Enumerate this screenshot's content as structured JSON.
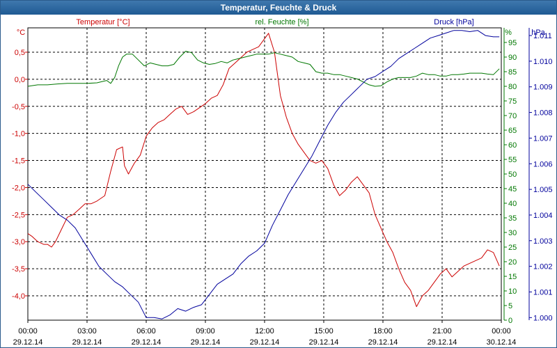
{
  "window": {
    "title": "Temperatur, Feuchte & Druck"
  },
  "chart_data": {
    "type": "line",
    "title": "Temperatur, Feuchte & Druck",
    "x_ticks": [
      {
        "time": "00:00",
        "date": "29.12.14"
      },
      {
        "time": "03:00",
        "date": "29.12.14"
      },
      {
        "time": "06:00",
        "date": "29.12.14"
      },
      {
        "time": "09:00",
        "date": "29.12.14"
      },
      {
        "time": "12:00",
        "date": "29.12.14"
      },
      {
        "time": "15:00",
        "date": "29.12.14"
      },
      {
        "time": "18:00",
        "date": "29.12.14"
      },
      {
        "time": "21:00",
        "date": "29.12.14"
      },
      {
        "time": "00:00",
        "date": "30.12.14"
      }
    ],
    "xlim": [
      0,
      24
    ],
    "axes": {
      "temperature": {
        "title": "Temperatur [°C]",
        "unit": "°C",
        "color": "#cc0000",
        "ylim": [
          -4.45,
          0.95
        ],
        "ticks": [
          {
            "v": 0.5,
            "label": "0,5"
          },
          {
            "v": 0.0,
            "label": "0,0"
          },
          {
            "v": -0.5,
            "label": "-0,5"
          },
          {
            "v": -1.0,
            "label": "-1,0"
          },
          {
            "v": -1.5,
            "label": "-1,5"
          },
          {
            "v": -2.0,
            "label": "-2,0"
          },
          {
            "v": -2.5,
            "label": "-2,5"
          },
          {
            "v": -3.0,
            "label": "-3,0"
          },
          {
            "v": -3.5,
            "label": "-3,5"
          },
          {
            "v": -4.0,
            "label": "-4,0"
          }
        ]
      },
      "humidity": {
        "title": "rel. Feuchte [%]",
        "unit": "%",
        "color": "#007700",
        "ylim": [
          0,
          100
        ],
        "ticks": [
          {
            "v": 95,
            "label": "95"
          },
          {
            "v": 90,
            "label": "90"
          },
          {
            "v": 85,
            "label": "85"
          },
          {
            "v": 80,
            "label": "80"
          },
          {
            "v": 75,
            "label": "75"
          },
          {
            "v": 70,
            "label": "70"
          },
          {
            "v": 65,
            "label": "65"
          },
          {
            "v": 60,
            "label": "60"
          },
          {
            "v": 55,
            "label": "55"
          },
          {
            "v": 50,
            "label": "50"
          },
          {
            "v": 45,
            "label": "45"
          },
          {
            "v": 40,
            "label": "40"
          },
          {
            "v": 35,
            "label": "35"
          },
          {
            "v": 30,
            "label": "30"
          },
          {
            "v": 25,
            "label": "25"
          },
          {
            "v": 20,
            "label": "20"
          },
          {
            "v": 15,
            "label": "15"
          },
          {
            "v": 10,
            "label": "10"
          },
          {
            "v": 5,
            "label": "5"
          },
          {
            "v": 0,
            "label": "0"
          }
        ]
      },
      "pressure": {
        "title": "Druck [hPa]",
        "unit": "hPa",
        "color": "#00009c",
        "ylim": [
          999.9,
          1011.3
        ],
        "ticks": [
          {
            "v": 1011,
            "label": "1.011"
          },
          {
            "v": 1010,
            "label": "1.010"
          },
          {
            "v": 1009,
            "label": "1.009"
          },
          {
            "v": 1008,
            "label": "1.008"
          },
          {
            "v": 1007,
            "label": "1.007"
          },
          {
            "v": 1006,
            "label": "1.006"
          },
          {
            "v": 1005,
            "label": "1.005"
          },
          {
            "v": 1004,
            "label": "1.004"
          },
          {
            "v": 1003,
            "label": "1.003"
          },
          {
            "v": 1002,
            "label": "1.002"
          },
          {
            "v": 1001,
            "label": "1.001"
          },
          {
            "v": 1000,
            "label": "1.000"
          }
        ]
      }
    },
    "series": [
      {
        "name": "Temperatur",
        "axis": "temperature",
        "color": "#cc0000",
        "x": [
          0,
          0.2,
          0.5,
          0.8,
          1.0,
          1.2,
          1.4,
          1.6,
          1.8,
          2.0,
          2.3,
          2.6,
          2.9,
          3.2,
          3.5,
          3.9,
          4.2,
          4.5,
          4.8,
          4.9,
          5.1,
          5.4,
          5.7,
          6.0,
          6.3,
          6.6,
          6.9,
          7.2,
          7.5,
          7.8,
          8.1,
          8.4,
          8.6,
          8.8,
          9.0,
          9.3,
          9.6,
          9.9,
          10.2,
          10.5,
          10.8,
          11.1,
          11.4,
          11.7,
          12.0,
          12.2,
          12.5,
          12.8,
          13.1,
          13.4,
          13.7,
          14.0,
          14.3,
          14.6,
          14.9,
          15.2,
          15.5,
          15.8,
          16.1,
          16.4,
          16.7,
          17.0,
          17.3,
          17.6,
          17.9,
          18.2,
          18.5,
          18.8,
          19.1,
          19.4,
          19.7,
          20.0,
          20.3,
          20.6,
          20.9,
          21.2,
          21.5,
          21.8,
          22.1,
          22.4,
          22.7,
          23.0,
          23.3,
          23.6,
          23.9
        ],
        "values": [
          -2.85,
          -2.9,
          -3.0,
          -3.05,
          -3.05,
          -3.1,
          -3.0,
          -2.85,
          -2.7,
          -2.55,
          -2.5,
          -2.4,
          -2.3,
          -2.3,
          -2.25,
          -2.15,
          -1.7,
          -1.3,
          -1.25,
          -1.6,
          -1.75,
          -1.55,
          -1.4,
          -1.05,
          -0.9,
          -0.8,
          -0.75,
          -0.65,
          -0.55,
          -0.5,
          -0.65,
          -0.6,
          -0.55,
          -0.5,
          -0.45,
          -0.35,
          -0.3,
          -0.1,
          0.2,
          0.3,
          0.4,
          0.5,
          0.55,
          0.6,
          0.75,
          0.85,
          0.5,
          -0.3,
          -0.7,
          -1.0,
          -1.2,
          -1.35,
          -1.5,
          -1.55,
          -1.5,
          -1.65,
          -1.95,
          -2.15,
          -2.05,
          -1.9,
          -1.8,
          -1.95,
          -2.1,
          -2.5,
          -2.75,
          -3.0,
          -3.2,
          -3.5,
          -3.75,
          -3.9,
          -4.2,
          -4.0,
          -3.9,
          -3.75,
          -3.6,
          -3.5,
          -3.65,
          -3.55,
          -3.45,
          -3.4,
          -3.35,
          -3.3,
          -3.15,
          -3.2,
          -3.45
        ]
      },
      {
        "name": "rel. Feuchte",
        "axis": "humidity",
        "color": "#007700",
        "x": [
          0,
          0.5,
          1.0,
          1.5,
          2.0,
          2.5,
          3.0,
          3.5,
          4.0,
          4.2,
          4.4,
          4.6,
          4.8,
          5.0,
          5.3,
          5.6,
          5.9,
          6.2,
          6.5,
          6.8,
          7.1,
          7.4,
          7.7,
          8.0,
          8.3,
          8.6,
          8.9,
          9.2,
          9.5,
          9.8,
          10.1,
          10.4,
          10.7,
          11.0,
          11.3,
          11.6,
          11.9,
          12.2,
          12.5,
          12.8,
          13.1,
          13.4,
          13.7,
          14.0,
          14.3,
          14.6,
          14.9,
          15.2,
          15.5,
          15.8,
          16.1,
          16.4,
          16.7,
          17.0,
          17.3,
          17.6,
          17.9,
          18.2,
          18.5,
          18.8,
          19.1,
          19.4,
          19.7,
          20.0,
          20.3,
          20.6,
          20.9,
          21.2,
          21.5,
          21.8,
          22.1,
          22.4,
          22.7,
          23.0,
          23.3,
          23.6,
          23.9
        ],
        "values": [
          80,
          80.5,
          80.5,
          80.8,
          81,
          81,
          81,
          81.2,
          82,
          81,
          83,
          87,
          90,
          91,
          91,
          89,
          87,
          88,
          87.5,
          87,
          87,
          87.5,
          90,
          92,
          91.5,
          89,
          88,
          87.5,
          87.8,
          88.5,
          88,
          89,
          89.5,
          90,
          90.5,
          91,
          91,
          91,
          91.5,
          91,
          90.5,
          90,
          88.5,
          88,
          87.5,
          85,
          84.5,
          84.5,
          84,
          84,
          83.5,
          83,
          82.5,
          81.5,
          80.5,
          80,
          80.2,
          81.5,
          82.5,
          83,
          83,
          83,
          83.5,
          84.5,
          84,
          84,
          83.5,
          83.5,
          84,
          84,
          84.2,
          84.5,
          84.5,
          84.5,
          84.2,
          84,
          86
        ]
      },
      {
        "name": "Druck",
        "axis": "pressure",
        "color": "#00009c",
        "x": [
          0,
          0.4,
          0.8,
          1.2,
          1.6,
          2.0,
          2.4,
          2.8,
          3.2,
          3.6,
          4.0,
          4.4,
          4.8,
          5.2,
          5.6,
          6.0,
          6.4,
          6.8,
          7.2,
          7.6,
          8.0,
          8.4,
          8.8,
          9.2,
          9.6,
          10.0,
          10.4,
          10.8,
          11.2,
          11.6,
          12.0,
          12.4,
          12.8,
          13.2,
          13.6,
          14.0,
          14.4,
          14.8,
          15.2,
          15.6,
          16.0,
          16.4,
          16.8,
          17.2,
          17.6,
          18.0,
          18.4,
          18.8,
          19.2,
          19.6,
          20.0,
          20.4,
          20.8,
          21.2,
          21.6,
          22.0,
          22.4,
          22.8,
          23.2,
          23.6,
          23.9
        ],
        "values": [
          1005.2,
          1004.9,
          1004.6,
          1004.3,
          1004.0,
          1003.8,
          1003.5,
          1003.0,
          1002.5,
          1002.0,
          1001.7,
          1001.4,
          1001.2,
          1000.9,
          1000.6,
          1000.0,
          1000.0,
          999.95,
          1000.1,
          1000.35,
          1000.25,
          1000.4,
          1000.5,
          1000.9,
          1001.3,
          1001.5,
          1001.7,
          1002.1,
          1002.4,
          1002.6,
          1002.9,
          1003.6,
          1004.2,
          1004.8,
          1005.3,
          1005.8,
          1006.3,
          1006.9,
          1007.5,
          1008.0,
          1008.4,
          1008.7,
          1009.0,
          1009.3,
          1009.4,
          1009.6,
          1009.8,
          1010.1,
          1010.3,
          1010.5,
          1010.7,
          1010.9,
          1011.0,
          1011.1,
          1011.2,
          1011.2,
          1011.15,
          1011.2,
          1011.0,
          1010.95,
          1010.95
        ]
      }
    ]
  }
}
